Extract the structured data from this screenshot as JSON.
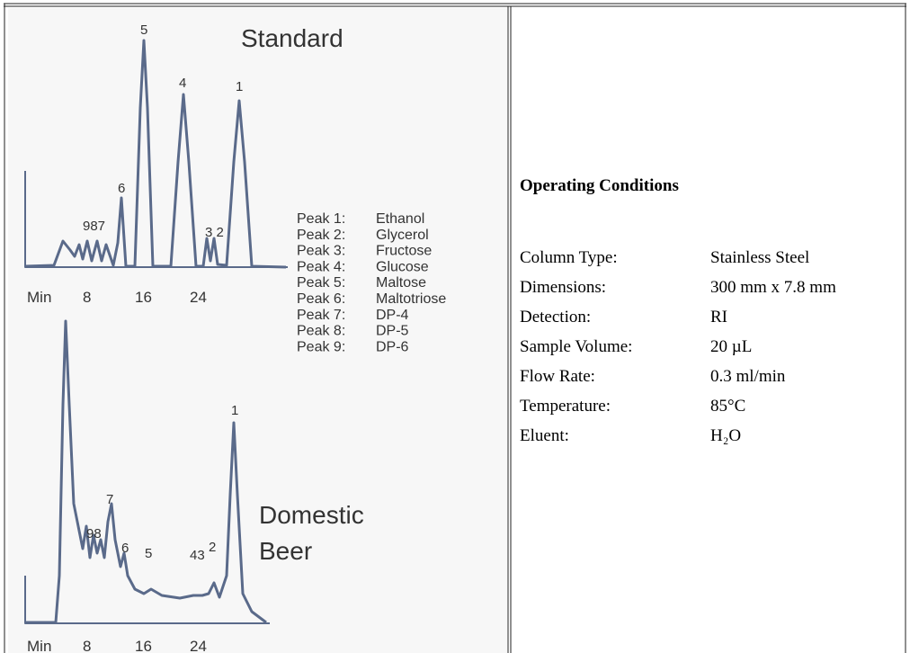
{
  "standard": {
    "title": "Standard",
    "peak_labels": [
      "5",
      "4",
      "1",
      "6",
      "987",
      "3 2"
    ],
    "axis_labels": [
      "Min",
      "8",
      "16",
      "24"
    ]
  },
  "legend": [
    {
      "peak": "Peak 1:",
      "name": "Ethanol"
    },
    {
      "peak": "Peak 2:",
      "name": "Glycerol"
    },
    {
      "peak": "Peak 3:",
      "name": "Fructose"
    },
    {
      "peak": "Peak 4:",
      "name": "Glucose"
    },
    {
      "peak": "Peak 5:",
      "name": "Maltose"
    },
    {
      "peak": "Peak 6:",
      "name": "Maltotriose"
    },
    {
      "peak": "Peak 7:",
      "name": "DP-4"
    },
    {
      "peak": "Peak 8:",
      "name": "DP-5"
    },
    {
      "peak": "Peak 9:",
      "name": "DP-6"
    }
  ],
  "domestic": {
    "title_lines": [
      "Domestic",
      "Beer"
    ],
    "peak_labels": [
      "1",
      "7",
      "98",
      "6",
      "5",
      "43",
      "2"
    ],
    "axis_labels": [
      "Min",
      "8",
      "16",
      "24"
    ]
  },
  "conditions": {
    "heading": "Operating Conditions",
    "rows": [
      [
        "Column Type:",
        "Stainless Steel"
      ],
      [
        "Dimensions:",
        "300 mm x 7.8 mm"
      ],
      [
        "Detection:",
        "RI"
      ],
      [
        "Sample Volume:",
        "20 µL"
      ],
      [
        "Flow Rate:",
        "0.3 ml/min"
      ],
      [
        "Temperature:",
        "85°C"
      ],
      [
        "Eluent:",
        "H₂O"
      ]
    ]
  }
}
